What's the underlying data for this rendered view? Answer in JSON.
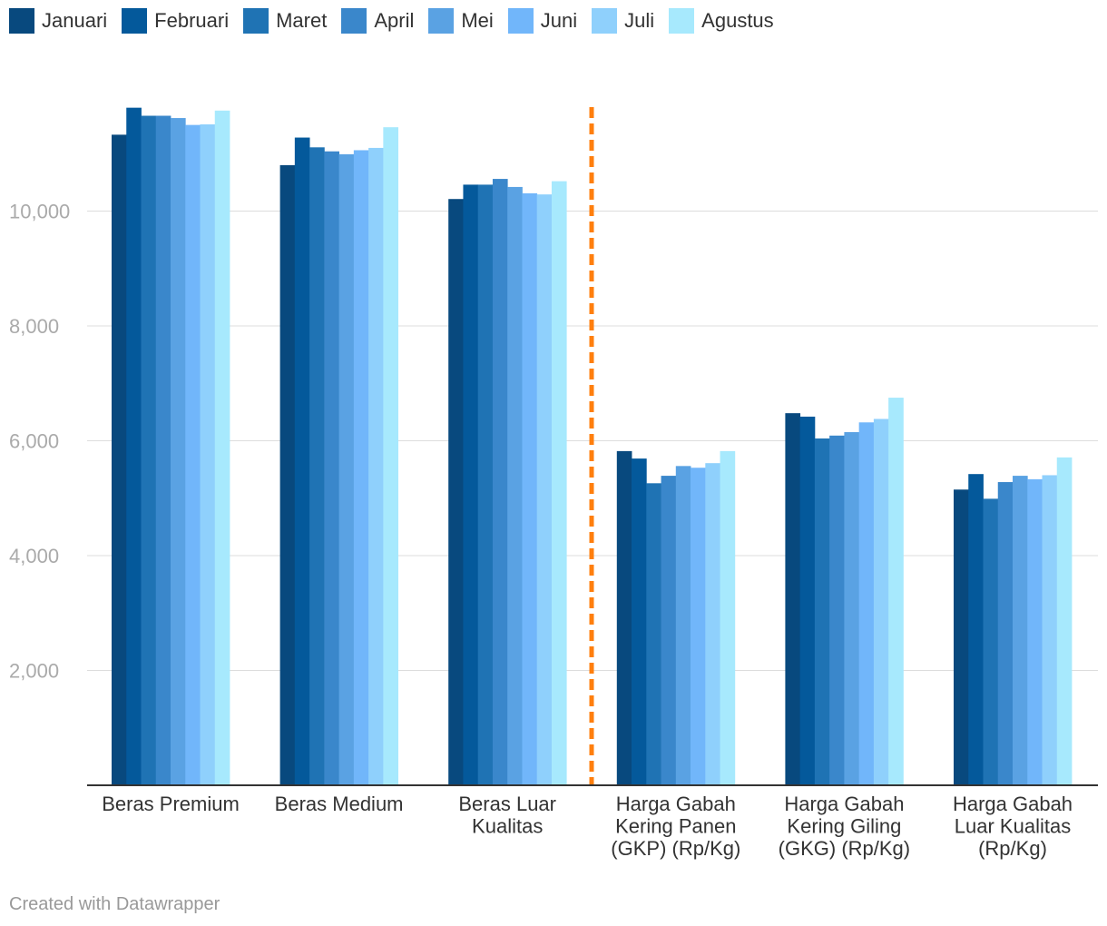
{
  "chart_data": {
    "type": "bar",
    "categories": [
      "Beras Premium",
      "Beras Medium",
      "Beras Luar Kualitas",
      "Harga Gabah Kering Panen (GKP) (Rp/Kg)",
      "Harga Gabah Kering Giling (GKG) (Rp/Kg)",
      "Harga Gabah Luar Kualitas (Rp/Kg)"
    ],
    "category_lines": [
      [
        "Beras Premium"
      ],
      [
        "Beras Medium"
      ],
      [
        "Beras Luar",
        "Kualitas"
      ],
      [
        "Harga Gabah",
        "Kering Panen",
        "(GKP) (Rp/Kg)"
      ],
      [
        "Harga Gabah",
        "Kering Giling",
        "(GKG) (Rp/Kg)"
      ],
      [
        "Harga Gabah",
        "Luar Kualitas",
        "(Rp/Kg)"
      ]
    ],
    "series": [
      {
        "name": "Januari",
        "color": "#08497e",
        "values": [
          11330,
          10800,
          10210,
          5820,
          6480,
          5150
        ]
      },
      {
        "name": "Februari",
        "color": "#04599b",
        "values": [
          11800,
          11280,
          10460,
          5690,
          6420,
          5420
        ]
      },
      {
        "name": "Maret",
        "color": "#1f73b4",
        "values": [
          11660,
          11110,
          10460,
          5260,
          6040,
          4990
        ]
      },
      {
        "name": "April",
        "color": "#3a87cb",
        "values": [
          11660,
          11040,
          10560,
          5390,
          6090,
          5280
        ]
      },
      {
        "name": "Mei",
        "color": "#5aa2e3",
        "values": [
          11620,
          10990,
          10420,
          5560,
          6150,
          5390
        ]
      },
      {
        "name": "Juni",
        "color": "#71b6fa",
        "values": [
          11500,
          11060,
          10310,
          5530,
          6320,
          5330
        ]
      },
      {
        "name": "Juli",
        "color": "#8fd0fc",
        "values": [
          11510,
          11100,
          10290,
          5610,
          6380,
          5400
        ]
      },
      {
        "name": "Agustus",
        "color": "#a7e9fd",
        "values": [
          11750,
          11460,
          10520,
          5820,
          6750,
          5710
        ]
      }
    ],
    "y_ticks": [
      "2,000",
      "4,000",
      "6,000",
      "8,000",
      "10,000"
    ],
    "y_tick_values": [
      2000,
      4000,
      6000,
      8000,
      10000
    ],
    "ylim": [
      0,
      11800
    ],
    "grid": true,
    "legend_position": "top-left",
    "divider_after_category": 3,
    "divider_color": "#ff7f0e",
    "title": "",
    "xlabel": "",
    "ylabel": ""
  },
  "footer": "Created with Datawrapper"
}
